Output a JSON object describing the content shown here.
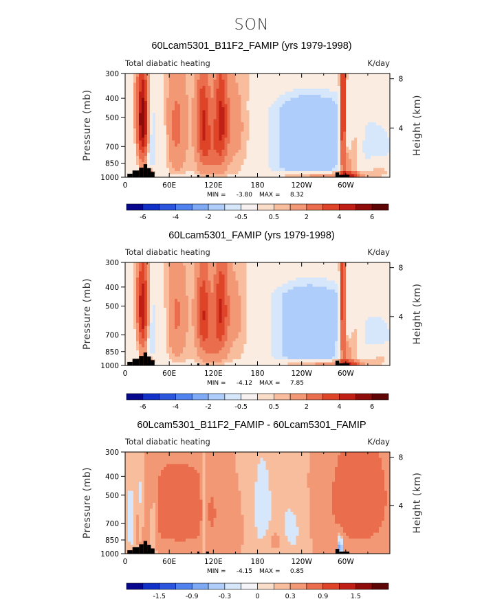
{
  "figure": {
    "title": "SON"
  },
  "colorbar_palette": [
    "#08088f",
    "#1030c8",
    "#2a55dc",
    "#4f82ee",
    "#7eaaf5",
    "#aecdfa",
    "#d6e6fb",
    "#faddc8",
    "#f8bd9d",
    "#f39875",
    "#ea6e4e",
    "#dd4428",
    "#c01f15",
    "#8e0c0a",
    "#5e0606"
  ],
  "chart_data": [
    {
      "type": "heatmap",
      "title": "60Lcam5301_B11F2_FAMIP (yrs 1979-1998)",
      "variable_label": "Total diabatic heating",
      "units": "K/day",
      "ylabel": "Pressure (mb)",
      "y2label": "Height (km)",
      "x_ticks": [
        "0",
        "60E",
        "120E",
        "180",
        "120W",
        "60W"
      ],
      "y_ticks": [
        "300",
        "400",
        "500",
        "700",
        "850",
        "1000"
      ],
      "height_ticks": [
        "8",
        "4"
      ],
      "stats": {
        "min_label": "MIN =",
        "min_value": "-3.80",
        "max_label": "MAX =",
        "max_value": "8.32"
      },
      "colorbar_labels": [
        "-6",
        "-4",
        "-2",
        "-0.5",
        "0.5",
        "2",
        "4",
        "6"
      ],
      "xlim": [
        0,
        360
      ],
      "ylim": [
        1000,
        300
      ]
    },
    {
      "type": "heatmap",
      "title": "60Lcam5301_FAMIP (yrs 1979-1998)",
      "variable_label": "Total diabatic heating",
      "units": "K/day",
      "ylabel": "Pressure (mb)",
      "y2label": "Height (km)",
      "x_ticks": [
        "0",
        "60E",
        "120E",
        "180",
        "120W",
        "60W"
      ],
      "y_ticks": [
        "300",
        "400",
        "500",
        "700",
        "850",
        "1000"
      ],
      "height_ticks": [
        "8",
        "4"
      ],
      "stats": {
        "min_label": "MIN =",
        "min_value": "-4.12",
        "max_label": "MAX =",
        "max_value": "7.85"
      },
      "colorbar_labels": [
        "-6",
        "-4",
        "-2",
        "-0.5",
        "0.5",
        "2",
        "4",
        "6"
      ],
      "xlim": [
        0,
        360
      ],
      "ylim": [
        1000,
        300
      ]
    },
    {
      "type": "heatmap",
      "title": "60Lcam5301_B11F2_FAMIP - 60Lcam5301_FAMIP",
      "variable_label": "Total diabatic heating",
      "units": "K/day",
      "ylabel": "Pressure (mb)",
      "y2label": "Height (km)",
      "x_ticks": [
        "0",
        "60E",
        "120E",
        "180",
        "120W",
        "60W"
      ],
      "y_ticks": [
        "300",
        "400",
        "500",
        "700",
        "850",
        "1000"
      ],
      "height_ticks": [
        "8",
        "4"
      ],
      "stats": {
        "min_label": "MIN =",
        "min_value": "-4.15",
        "max_label": "MAX =",
        "max_value": "0.85"
      },
      "colorbar_labels": [
        "-1.5",
        "-0.9",
        "-0.3",
        "0",
        "0.3",
        "0.9",
        "1.5"
      ],
      "xlim": [
        0,
        360
      ],
      "ylim": [
        1000,
        300
      ]
    }
  ]
}
